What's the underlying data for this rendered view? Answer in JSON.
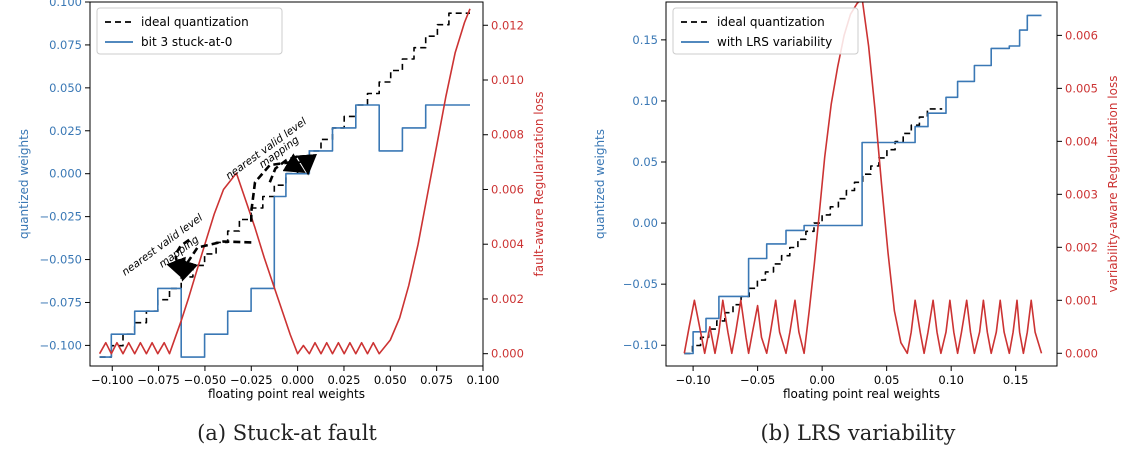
{
  "chart_data": [
    {
      "type": "line",
      "caption": "(a) Stuck-at fault",
      "xlabel": "floating point real weights",
      "ylabel_left": "quantized weights",
      "ylabel_right": "fault-aware Regularization loss",
      "xlim": [
        -0.112,
        0.1
      ],
      "ylim_left": [
        -0.112,
        0.1
      ],
      "ylim_right": [
        -0.00045,
        0.01285
      ],
      "xticks": [
        -0.1,
        -0.075,
        -0.05,
        -0.025,
        0.0,
        0.025,
        0.05,
        0.075,
        0.1
      ],
      "xtick_labels": [
        "−0.100",
        "−0.075",
        "−0.050",
        "−0.025",
        "0.000",
        "0.025",
        "0.050",
        "0.075",
        "0.100"
      ],
      "yticks_left": [
        -0.1,
        -0.075,
        -0.05,
        -0.025,
        0.0,
        0.025,
        0.05,
        0.075,
        0.1
      ],
      "ytick_labels_left": [
        "−0.100",
        "−0.075",
        "−0.050",
        "−0.025",
        "0.000",
        "0.025",
        "0.050",
        "0.075",
        "0.100"
      ],
      "yticks_right": [
        0.0,
        0.002,
        0.004,
        0.006,
        0.008,
        0.01,
        0.012
      ],
      "ytick_labels_right": [
        "0.000",
        "0.002",
        "0.004",
        "0.006",
        "0.008",
        "0.010",
        "0.012"
      ],
      "legend": {
        "position": "upper-left",
        "entries": [
          {
            "label": "ideal quantization",
            "color": "#000000",
            "style": "dashed"
          },
          {
            "label": "bit 3 stuck-at-0",
            "color": "#3a78b5",
            "style": "solid"
          }
        ]
      },
      "series": [
        {
          "name": "ideal quantization",
          "axis": "left",
          "color": "#000000",
          "dash": "6,4",
          "x": [
            -0.1068,
            -0.1005,
            -0.1005,
            -0.0942,
            -0.0942,
            -0.0879,
            -0.0879,
            -0.0816,
            -0.0816,
            -0.0754,
            -0.0754,
            -0.0691,
            -0.0691,
            -0.0628,
            -0.0628,
            -0.0565,
            -0.0565,
            -0.0502,
            -0.0502,
            -0.044,
            -0.044,
            -0.0377,
            -0.0377,
            -0.0314,
            -0.0314,
            -0.0251,
            -0.0251,
            -0.0188,
            -0.0188,
            -0.0126,
            -0.0126,
            -0.0063,
            -0.0063,
            0.0,
            0.0,
            0.0063,
            0.0063,
            0.0126,
            0.0126,
            0.0188,
            0.0188,
            0.0251,
            0.0251,
            0.0314,
            0.0314,
            0.0377,
            0.0377,
            0.044,
            0.044,
            0.0502,
            0.0502,
            0.0565,
            0.0565,
            0.0628,
            0.0628,
            0.0691,
            0.0691,
            0.0754,
            0.0754,
            0.0816,
            0.0816,
            0.0879,
            0.0879,
            0.093
          ],
          "y": [
            -0.1068,
            -0.1068,
            -0.1002,
            -0.1002,
            -0.0935,
            -0.0935,
            -0.0868,
            -0.0868,
            -0.0801,
            -0.0801,
            -0.0734,
            -0.0734,
            -0.0668,
            -0.0668,
            -0.0601,
            -0.0601,
            -0.0534,
            -0.0534,
            -0.0467,
            -0.0467,
            -0.04,
            -0.04,
            -0.0334,
            -0.0334,
            -0.0267,
            -0.0267,
            -0.02,
            -0.02,
            -0.0133,
            -0.0133,
            -0.0067,
            -0.0067,
            0.0,
            0.0,
            0.0067,
            0.0067,
            0.0133,
            0.0133,
            0.02,
            0.02,
            0.0267,
            0.0267,
            0.0334,
            0.0334,
            0.04,
            0.04,
            0.0467,
            0.0467,
            0.0534,
            0.0534,
            0.0601,
            0.0601,
            0.0668,
            0.0668,
            0.0734,
            0.0734,
            0.0801,
            0.0801,
            0.0868,
            0.0868,
            0.0935,
            0.0935,
            0.0935,
            0.0935
          ]
        },
        {
          "name": "bit 3 stuck-at-0",
          "axis": "left",
          "color": "#3a78b5",
          "dash": "",
          "x": [
            -0.1068,
            -0.1005,
            -0.1005,
            -0.0879,
            -0.0879,
            -0.0754,
            -0.0754,
            -0.0628,
            -0.0628,
            -0.0502,
            -0.0502,
            -0.0377,
            -0.0377,
            -0.0251,
            -0.0251,
            -0.0126,
            -0.0126,
            -0.0063,
            -0.0063,
            0.0063,
            0.0063,
            0.0188,
            0.0188,
            0.0314,
            0.0314,
            0.044,
            0.044,
            0.0565,
            0.0565,
            0.0691,
            0.0691,
            0.0816,
            0.0816,
            0.093
          ],
          "y": [
            -0.1068,
            -0.1068,
            -0.0935,
            -0.0935,
            -0.0801,
            -0.0801,
            -0.0668,
            -0.0668,
            -0.1068,
            -0.1068,
            -0.0935,
            -0.0935,
            -0.0801,
            -0.0801,
            -0.0668,
            -0.0668,
            -0.0133,
            -0.0133,
            0.0,
            0.0,
            0.0133,
            0.0133,
            0.0267,
            0.0267,
            0.04,
            0.04,
            0.0133,
            0.0133,
            0.0267,
            0.0267,
            0.04,
            0.04,
            0.04,
            0.04
          ]
        },
        {
          "name": "fault-aware Regularization loss",
          "axis": "right",
          "color": "#cc3333",
          "dash": "",
          "x": [
            -0.1068,
            -0.1035,
            -0.1005,
            -0.0975,
            -0.0942,
            -0.0911,
            -0.0879,
            -0.0848,
            -0.0816,
            -0.0785,
            -0.0754,
            -0.072,
            -0.0691,
            -0.066,
            -0.0628,
            -0.059,
            -0.055,
            -0.05,
            -0.045,
            -0.04,
            -0.033,
            -0.028,
            -0.023,
            -0.018,
            -0.013,
            -0.008,
            -0.004,
            0.0,
            0.0031,
            0.0063,
            0.0094,
            0.0126,
            0.0157,
            0.0188,
            0.022,
            0.0251,
            0.0282,
            0.0314,
            0.0345,
            0.0377,
            0.0408,
            0.044,
            0.05,
            0.055,
            0.06,
            0.065,
            0.07,
            0.075,
            0.08,
            0.085,
            0.09,
            0.093
          ],
          "y": [
            0.0,
            0.0004,
            0.0,
            0.0004,
            0.0,
            0.0004,
            0.0,
            0.0004,
            0.0,
            0.0004,
            0.0,
            0.0004,
            0.0,
            0.0006,
            0.0012,
            0.002,
            0.0029,
            0.004,
            0.0051,
            0.006,
            0.0066,
            0.0056,
            0.0046,
            0.0035,
            0.0025,
            0.0015,
            0.0007,
            0.0,
            0.0003,
            0.0,
            0.0004,
            0.0,
            0.0004,
            0.0,
            0.0004,
            0.0,
            0.0004,
            0.0,
            0.0004,
            0.0,
            0.0004,
            0.0,
            0.0005,
            0.0013,
            0.0025,
            0.004,
            0.0058,
            0.0076,
            0.0094,
            0.011,
            0.0121,
            0.0126
          ]
        }
      ],
      "annotations": [
        {
          "text": "nearest valid level",
          "x": -0.072,
          "y": -0.043,
          "rotate": -36
        },
        {
          "text": "mapping",
          "x": -0.063,
          "y": -0.047,
          "rotate": -36
        },
        {
          "text": "nearest valid level",
          "x": -0.016,
          "y": 0.013,
          "rotate": -36
        },
        {
          "text": "mapping",
          "x": -0.009,
          "y": 0.011,
          "rotate": -36
        }
      ],
      "arrows": [
        {
          "points": [
            [
              -0.025,
              -0.04
            ],
            [
              -0.04,
              -0.0395
            ],
            [
              -0.054,
              -0.043
            ],
            [
              -0.059,
              -0.051
            ],
            [
              -0.0615,
              -0.06
            ]
          ]
        },
        {
          "points": [
            [
              -0.0585,
              -0.0385
            ],
            [
              -0.063,
              -0.042
            ],
            [
              -0.066,
              -0.047
            ],
            [
              -0.065,
              -0.052
            ],
            [
              -0.0625,
              -0.059
            ]
          ]
        },
        {
          "points": [
            [
              -0.025,
              -0.028
            ],
            [
              -0.025,
              -0.022
            ],
            [
              -0.023,
              -0.005
            ],
            [
              -0.015,
              0.005
            ],
            [
              -0.005,
              0.0065
            ],
            [
              0.002,
              0.002
            ]
          ]
        },
        {
          "points": [
            [
              -0.015,
              -0.005
            ],
            [
              -0.012,
              0.003
            ],
            [
              -0.006,
              0.008
            ],
            [
              0.0,
              0.01
            ],
            [
              0.005,
              0.009
            ],
            [
              0.0055,
              0.002
            ]
          ]
        }
      ]
    },
    {
      "type": "line",
      "caption": "(b) LRS variability",
      "xlabel": "floating point real weights",
      "ylabel_left": "quantized weights",
      "ylabel_right": "variability-aware Regularization loss",
      "xlim": [
        -0.121,
        0.182
      ],
      "ylim_left": [
        -0.117,
        0.181
      ],
      "ylim_right": [
        -0.00024,
        0.00663
      ],
      "xticks": [
        -0.1,
        -0.05,
        0.0,
        0.05,
        0.1,
        0.15
      ],
      "xtick_labels": [
        "−0.10",
        "−0.05",
        "0.00",
        "0.05",
        "0.10",
        "0.15"
      ],
      "yticks_left": [
        -0.1,
        -0.05,
        0.0,
        0.05,
        0.1,
        0.15
      ],
      "ytick_labels_left": [
        "−0.10",
        "−0.05",
        "0.00",
        "0.05",
        "0.10",
        "0.15"
      ],
      "yticks_right": [
        0.0,
        0.001,
        0.002,
        0.003,
        0.004,
        0.005,
        0.006
      ],
      "ytick_labels_right": [
        "0.000",
        "0.001",
        "0.002",
        "0.003",
        "0.004",
        "0.005",
        "0.006"
      ],
      "legend": {
        "position": "upper-left",
        "entries": [
          {
            "label": "ideal quantization",
            "color": "#000000",
            "style": "dashed"
          },
          {
            "label": "with LRS variability",
            "color": "#3a78b5",
            "style": "solid"
          }
        ]
      },
      "series": [
        {
          "name": "ideal quantization",
          "axis": "left",
          "color": "#000000",
          "dash": "6,4",
          "x": [
            -0.1068,
            -0.1005,
            -0.1005,
            -0.0942,
            -0.0942,
            -0.0879,
            -0.0879,
            -0.0816,
            -0.0816,
            -0.0754,
            -0.0754,
            -0.0691,
            -0.0691,
            -0.0628,
            -0.0628,
            -0.0565,
            -0.0565,
            -0.0502,
            -0.0502,
            -0.044,
            -0.044,
            -0.0377,
            -0.0377,
            -0.0314,
            -0.0314,
            -0.0251,
            -0.0251,
            -0.0188,
            -0.0188,
            -0.0126,
            -0.0126,
            -0.0063,
            -0.0063,
            0.0,
            0.0,
            0.0063,
            0.0063,
            0.0126,
            0.0126,
            0.0188,
            0.0188,
            0.0251,
            0.0251,
            0.0314,
            0.0314,
            0.0377,
            0.0377,
            0.044,
            0.044,
            0.0502,
            0.0502,
            0.0565,
            0.0565,
            0.0628,
            0.0628,
            0.0691,
            0.0691,
            0.0754,
            0.0754,
            0.0816,
            0.0816,
            0.0879,
            0.0879,
            0.093
          ],
          "y": [
            -0.1068,
            -0.1068,
            -0.1002,
            -0.1002,
            -0.0935,
            -0.0935,
            -0.0868,
            -0.0868,
            -0.0801,
            -0.0801,
            -0.0734,
            -0.0734,
            -0.0668,
            -0.0668,
            -0.0601,
            -0.0601,
            -0.0534,
            -0.0534,
            -0.0467,
            -0.0467,
            -0.04,
            -0.04,
            -0.0334,
            -0.0334,
            -0.0267,
            -0.0267,
            -0.02,
            -0.02,
            -0.0133,
            -0.0133,
            -0.0067,
            -0.0067,
            0.0,
            0.0,
            0.0067,
            0.0067,
            0.0133,
            0.0133,
            0.02,
            0.02,
            0.0267,
            0.0267,
            0.0334,
            0.0334,
            0.04,
            0.04,
            0.0467,
            0.0467,
            0.0534,
            0.0534,
            0.0601,
            0.0601,
            0.0668,
            0.0668,
            0.0734,
            0.0734,
            0.0801,
            0.0801,
            0.0868,
            0.0868,
            0.0935,
            0.0935,
            0.0935,
            0.0935
          ]
        },
        {
          "name": "with LRS variability",
          "axis": "left",
          "color": "#3a78b5",
          "dash": "",
          "x": [
            -0.1068,
            -0.1,
            -0.1,
            -0.09,
            -0.09,
            -0.08,
            -0.08,
            -0.07,
            -0.07,
            -0.057,
            -0.057,
            -0.043,
            -0.043,
            -0.028,
            -0.028,
            -0.014,
            -0.014,
            0.031,
            0.031,
            0.072,
            0.072,
            0.082,
            0.082,
            0.096,
            0.096,
            0.105,
            0.105,
            0.118,
            0.118,
            0.131,
            0.131,
            0.145,
            0.145,
            0.153,
            0.153,
            0.159,
            0.159,
            0.17
          ],
          "y": [
            -0.1068,
            -0.1068,
            -0.089,
            -0.089,
            -0.078,
            -0.078,
            -0.06,
            -0.06,
            -0.06,
            -0.06,
            -0.029,
            -0.029,
            -0.017,
            -0.017,
            -0.006,
            -0.006,
            -0.002,
            -0.002,
            0.066,
            0.066,
            0.079,
            0.079,
            0.09,
            0.09,
            0.103,
            0.103,
            0.116,
            0.116,
            0.129,
            0.129,
            0.143,
            0.143,
            0.145,
            0.145,
            0.158,
            0.158,
            0.17,
            0.17
          ]
        },
        {
          "name": "variability-aware Regularization loss",
          "axis": "right",
          "color": "#cc3333",
          "dash": "",
          "x": [
            -0.1068,
            -0.103,
            -0.099,
            -0.095,
            -0.091,
            -0.087,
            -0.083,
            -0.08,
            -0.077,
            -0.073,
            -0.07,
            -0.067,
            -0.063,
            -0.059,
            -0.057,
            -0.054,
            -0.05,
            -0.047,
            -0.043,
            -0.04,
            -0.036,
            -0.033,
            -0.028,
            -0.025,
            -0.021,
            -0.018,
            -0.014,
            -0.01,
            -0.006,
            -0.002,
            0.002,
            0.007,
            0.012,
            0.017,
            0.022,
            0.027,
            0.031,
            0.036,
            0.041,
            0.046,
            0.051,
            0.056,
            0.061,
            0.066,
            0.069,
            0.072,
            0.076,
            0.079,
            0.082,
            0.086,
            0.089,
            0.092,
            0.096,
            0.099,
            0.102,
            0.105,
            0.108,
            0.112,
            0.115,
            0.118,
            0.122,
            0.125,
            0.128,
            0.131,
            0.135,
            0.138,
            0.141,
            0.145,
            0.148,
            0.151,
            0.153,
            0.156,
            0.159,
            0.162,
            0.165,
            0.17
          ],
          "y": [
            0.0,
            0.0005,
            0.001,
            0.0005,
            0.0,
            0.0005,
            0.0,
            0.0004,
            0.001,
            0.0004,
            0.0,
            0.0004,
            0.001,
            0.0003,
            0.0,
            0.0004,
            0.0009,
            0.0003,
            0.0,
            0.0004,
            0.001,
            0.0004,
            0.0,
            0.0004,
            0.001,
            0.0004,
            0.0,
            0.0008,
            0.0017,
            0.0027,
            0.0037,
            0.0047,
            0.0054,
            0.006,
            0.0064,
            0.0066,
            0.0067,
            0.0058,
            0.0046,
            0.0032,
            0.0019,
            0.0008,
            0.0002,
            0.0,
            0.0004,
            0.001,
            0.0004,
            0.0,
            0.0004,
            0.001,
            0.0004,
            0.0,
            0.0004,
            0.001,
            0.0004,
            0.0,
            0.0004,
            0.001,
            0.0004,
            0.0,
            0.0004,
            0.001,
            0.0004,
            0.0,
            0.0004,
            0.001,
            0.0004,
            0.0,
            0.0004,
            0.001,
            0.0004,
            0.0,
            0.0004,
            0.001,
            0.0004,
            0.0
          ]
        }
      ]
    }
  ]
}
